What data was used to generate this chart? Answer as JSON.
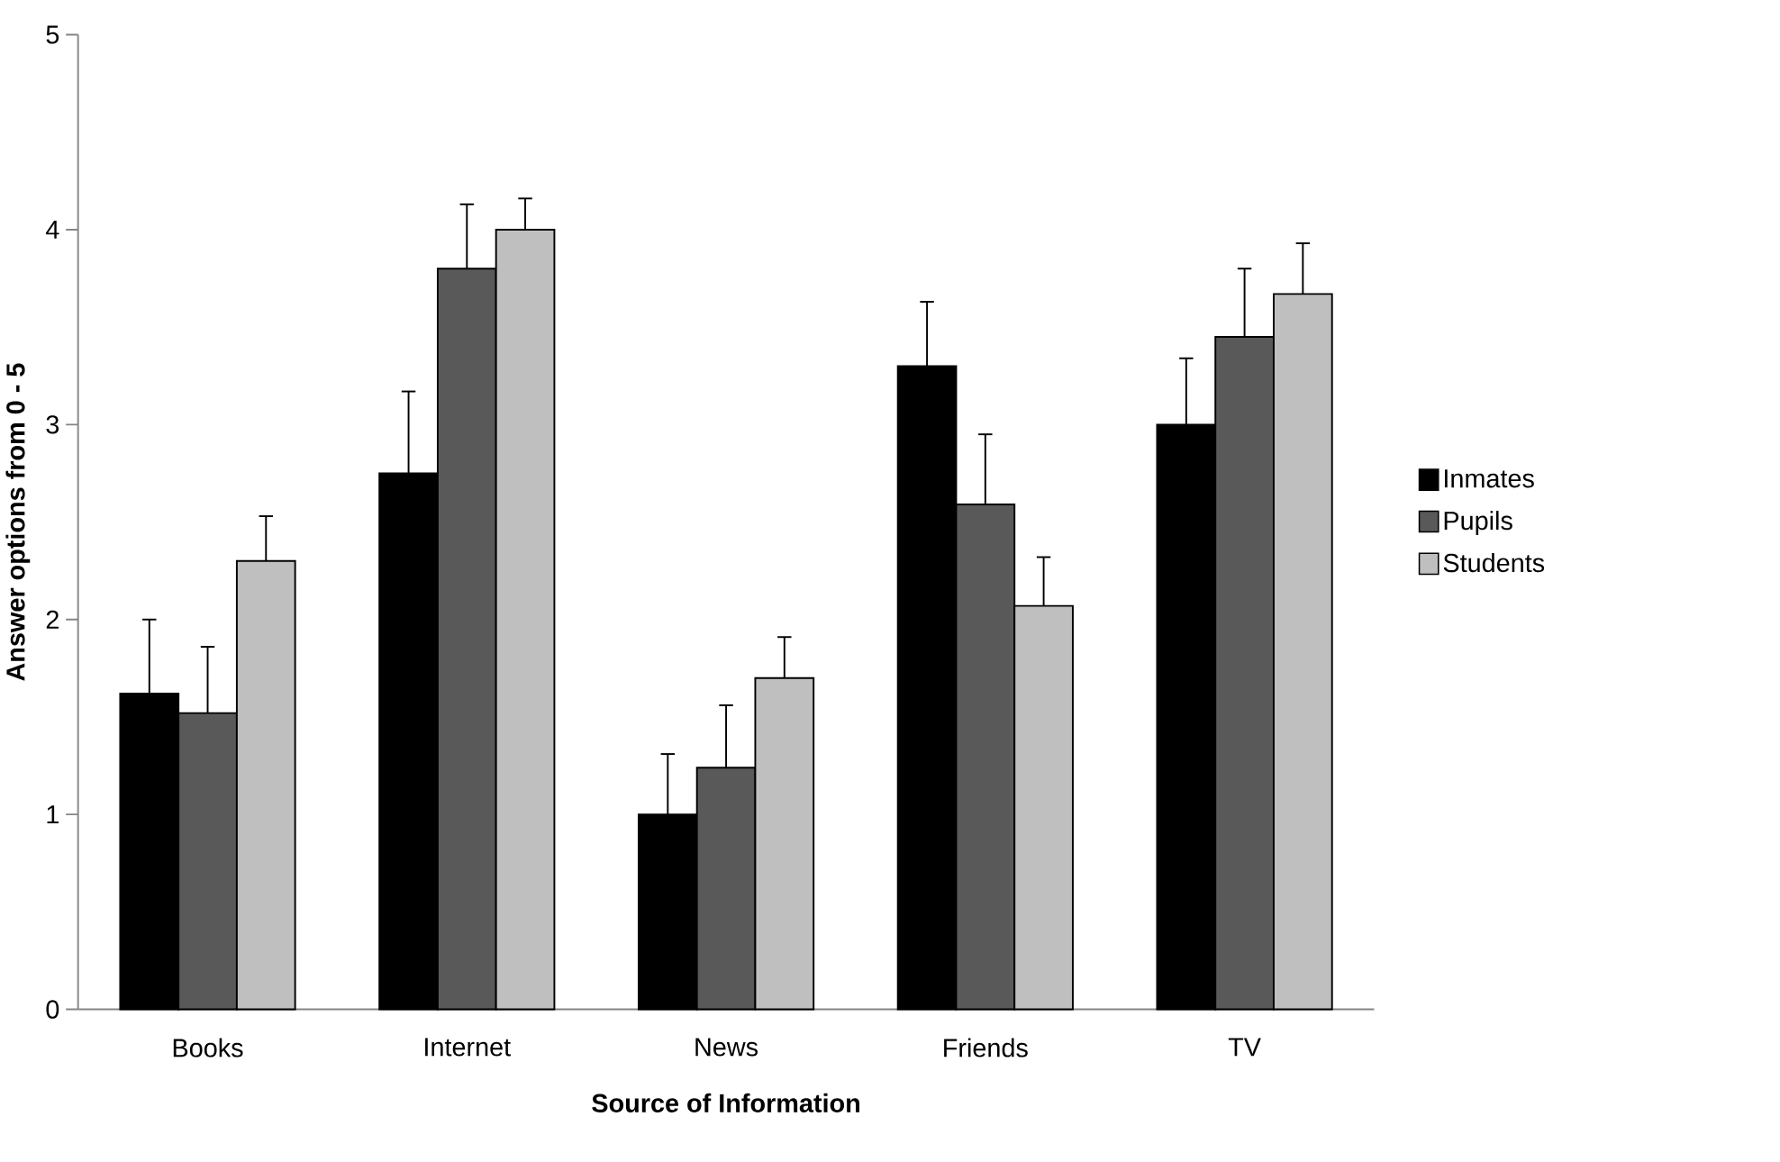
{
  "chart_data": {
    "type": "bar",
    "xlabel": "Source of Information",
    "ylabel": "Answer options from 0 - 5",
    "categories": [
      "Books",
      "Internet",
      "News",
      "Friends",
      "TV"
    ],
    "series": [
      {
        "name": "Inmates",
        "color": "#000000",
        "values": [
          1.62,
          2.75,
          1.0,
          3.3,
          3.0
        ],
        "errors": [
          [
            1.62,
            2.0
          ],
          [
            2.75,
            3.17
          ],
          [
            1.0,
            1.31
          ],
          [
            3.3,
            3.63
          ],
          [
            3.0,
            3.34
          ]
        ]
      },
      {
        "name": "Pupils",
        "color": "#595959",
        "values": [
          1.52,
          3.8,
          1.24,
          2.59,
          3.45
        ],
        "errors": [
          [
            1.52,
            1.86
          ],
          [
            3.8,
            4.13
          ],
          [
            1.24,
            1.56
          ],
          [
            2.59,
            2.95
          ],
          [
            3.45,
            3.8
          ]
        ]
      },
      {
        "name": "Students",
        "color": "#bfbfbf",
        "values": [
          2.3,
          4.0,
          1.7,
          2.07,
          3.67
        ],
        "errors": [
          [
            2.3,
            2.53
          ],
          [
            4.0,
            4.16
          ],
          [
            1.7,
            1.91
          ],
          [
            2.07,
            2.32
          ],
          [
            3.67,
            3.93
          ]
        ]
      }
    ],
    "ylim": [
      0,
      5
    ],
    "yticks": [
      0,
      1,
      2,
      3,
      4,
      5
    ],
    "grid": false,
    "legend": "right"
  }
}
